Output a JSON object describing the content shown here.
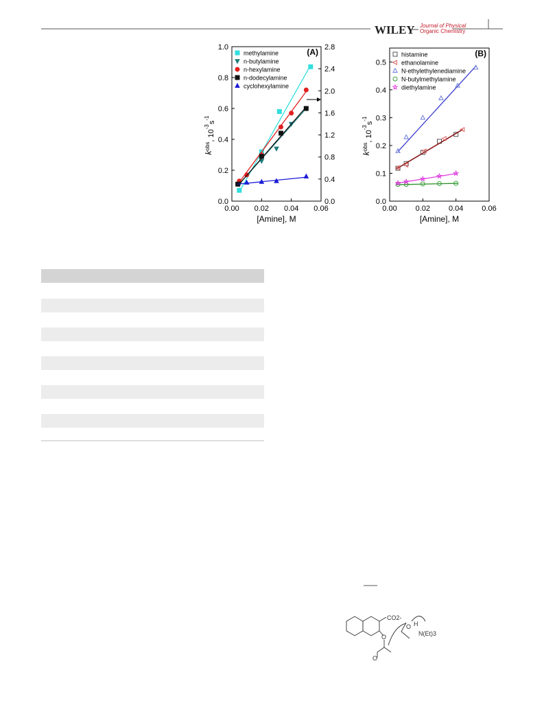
{
  "header": {
    "brand": "WILEY",
    "journal_line1": "Journal of Physical",
    "journal_line2": "Organic Chemistry"
  },
  "chart_data": [
    {
      "type": "scatter",
      "panel_label": "(A)",
      "xlabel": "[Amine], M",
      "ylabel": [
        "k",
        "obs",
        ", 10",
        "-3",
        "s",
        "-1"
      ],
      "xlim": [
        0,
        0.06
      ],
      "xticks": [
        {
          "value": 0,
          "label": "0.00"
        },
        0.02,
        0.04,
        0.06
      ],
      "ylim": [
        0,
        1
      ],
      "yticks": [
        {
          "value": 0,
          "label": "0.0"
        },
        0.2,
        0.4,
        0.6,
        0.8,
        {
          "value": 1,
          "label": "1.0"
        }
      ],
      "y2lim": [
        0,
        2.8
      ],
      "y2ticks": [
        {
          "value": 0,
          "label": "0.0"
        },
        0.4,
        0.8,
        1.2,
        1.6,
        {
          "value": 2,
          "label": "2.0"
        },
        2.4,
        2.8
      ],
      "legend": "upper left",
      "filled": true,
      "series": [
        {
          "name": "methylamine",
          "color": "#33dede",
          "marker": "square",
          "x": [
            0.005,
            0.02,
            0.032,
            0.053
          ],
          "values": [
            0.07,
            0.32,
            0.58,
            0.87
          ],
          "fit_x": [
            0.005,
            0.053
          ],
          "fit_y": [
            0.06,
            0.88
          ]
        },
        {
          "name": "n-butylamine",
          "color": "#1c7c7c",
          "marker": "triangle-down",
          "x": [
            0.005,
            0.02,
            0.03,
            0.04,
            0.05
          ],
          "values": [
            0.11,
            0.26,
            0.34,
            0.5,
            0.6
          ],
          "fit_x": [
            0.004,
            0.05
          ],
          "fit_y": [
            0.1,
            0.6
          ]
        },
        {
          "name": "n-hexylamine",
          "color": "#e02020",
          "marker": "circle",
          "x": [
            0.005,
            0.01,
            0.02,
            0.033,
            0.04,
            0.05
          ],
          "values": [
            0.13,
            0.17,
            0.3,
            0.48,
            0.57,
            0.72
          ],
          "fit_x": [
            0.004,
            0.05
          ],
          "fit_y": [
            0.11,
            0.71
          ]
        },
        {
          "name": "n-dodecylamine",
          "color": "#111111",
          "marker": "square",
          "x": [
            0.004,
            0.02,
            0.033,
            0.05
          ],
          "values": [
            0.11,
            0.29,
            0.44,
            0.6
          ],
          "fit_x": [
            0.004,
            0.05
          ],
          "fit_y": [
            0.1,
            0.61
          ]
        },
        {
          "name": "cyclohexylamine",
          "color": "#1a1ad8",
          "marker": "triangle-up",
          "x": [
            0.01,
            0.02,
            0.03,
            0.05
          ],
          "values": [
            0.12,
            0.125,
            0.13,
            0.16
          ],
          "fit_x": [
            0.004,
            0.05
          ],
          "fit_y": [
            0.11,
            0.155
          ]
        }
      ]
    },
    {
      "type": "scatter",
      "panel_label": "(B)",
      "xlabel": "[Amine], M",
      "ylabel": [
        "k",
        "obs",
        ", 10",
        "-3",
        "s",
        "-1"
      ],
      "xlim": [
        0,
        0.06
      ],
      "xticks": [
        {
          "value": 0,
          "label": "0.00"
        },
        0.02,
        0.04,
        0.06
      ],
      "ylim": [
        0,
        0.55
      ],
      "yticks": [
        {
          "value": 0,
          "label": "0.0"
        },
        0.1,
        0.2,
        0.3,
        0.4,
        0.5
      ],
      "legend": "upper left",
      "filled": false,
      "series": [
        {
          "name": "histamine",
          "color": "#555555",
          "line_color": "#8b1a1a",
          "marker": "square",
          "x": [
            0.005,
            0.01,
            0.02,
            0.03,
            0.04
          ],
          "values": [
            0.118,
            0.135,
            0.175,
            0.215,
            0.24
          ],
          "fit_x": [
            0.004,
            0.044
          ],
          "fit_y": [
            0.115,
            0.257
          ]
        },
        {
          "name": "ethanolamine",
          "color": "#e06060",
          "line_color": "#8b1a1a",
          "marker": "triangle-left",
          "x": [
            0.005,
            0.01,
            0.021,
            0.033,
            0.044
          ],
          "values": [
            0.12,
            0.13,
            0.18,
            0.225,
            0.257
          ],
          "fit_x": [
            0.004,
            0.044
          ],
          "fit_y": [
            0.116,
            0.258
          ]
        },
        {
          "name": "N-ethylethylenediamine",
          "color": "#6a7ad8",
          "line_color": "#3a3ad0",
          "marker": "triangle-up",
          "x": [
            0.005,
            0.01,
            0.02,
            0.031,
            0.041,
            0.052
          ],
          "values": [
            0.18,
            0.23,
            0.3,
            0.37,
            0.415,
            0.48
          ],
          "fit_x": [
            0.005,
            0.052
          ],
          "fit_y": [
            0.178,
            0.485
          ]
        },
        {
          "name": "N-butylmethylamine",
          "color": "#3aa03a",
          "line_color": "#2a902a",
          "marker": "circle",
          "x": [
            0.005,
            0.01,
            0.02,
            0.03,
            0.04
          ],
          "values": [
            0.06,
            0.06,
            0.062,
            0.063,
            0.064
          ],
          "fit_x": [
            0.004,
            0.041
          ],
          "fit_y": [
            0.059,
            0.064
          ]
        },
        {
          "name": "diethylamine",
          "color": "#e040e0",
          "line_color": "#e040e0",
          "marker": "star",
          "x": [
            0.005,
            0.01,
            0.02,
            0.03,
            0.04
          ],
          "values": [
            0.065,
            0.07,
            0.08,
            0.09,
            0.1
          ],
          "fit_x": [
            0.004,
            0.041
          ],
          "fit_y": [
            0.064,
            0.1
          ]
        }
      ]
    }
  ],
  "scheme": {
    "labels": [
      "CO2-",
      "O",
      "H",
      "N(Et)3",
      "O"
    ]
  }
}
